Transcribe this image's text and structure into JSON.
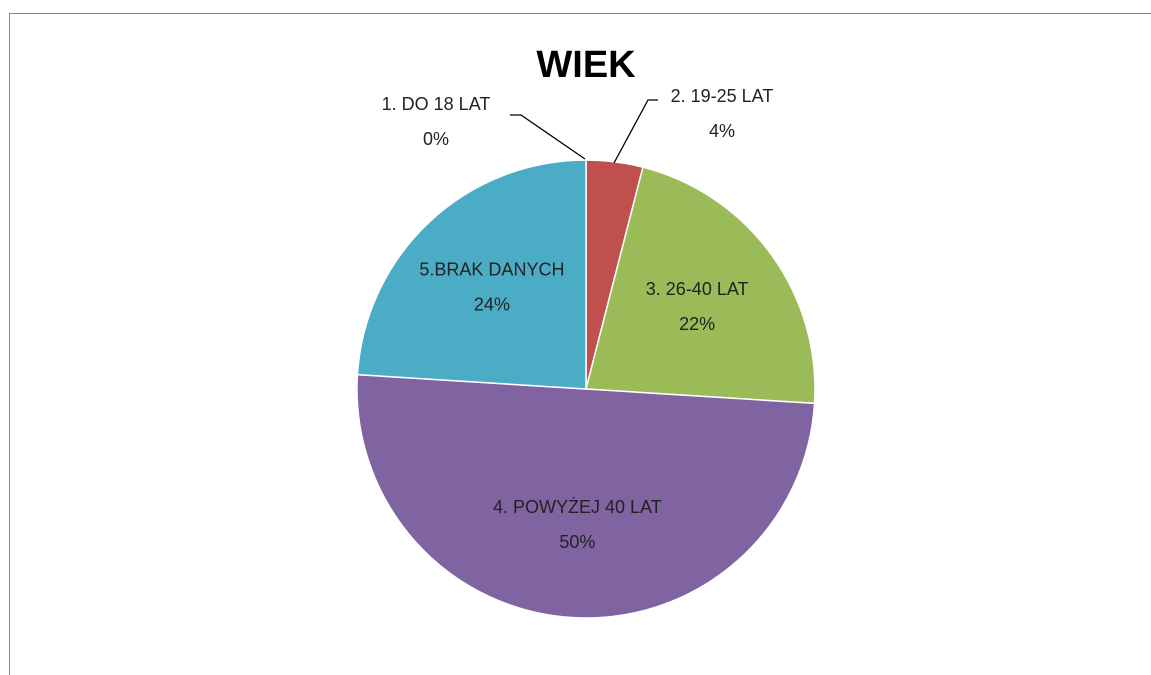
{
  "chart_data": {
    "type": "pie",
    "title": "WIEK",
    "categories": [
      "1. DO 18 LAT",
      "2. 19-25 LAT",
      "3. 26-40 LAT",
      "4. POWYŻEJ 40 LAT",
      "5.BRAK DANYCH"
    ],
    "values": [
      0,
      4,
      22,
      50,
      24
    ],
    "value_labels": [
      "0%",
      "4%",
      "22%",
      "50%",
      "24%"
    ],
    "colors": [
      "#4f81bd",
      "#c0504d",
      "#9bbb59",
      "#8064a2",
      "#4bacc6"
    ]
  }
}
